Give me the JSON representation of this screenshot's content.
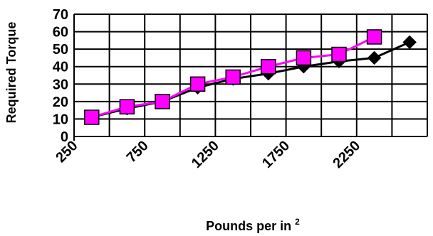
{
  "chart_data": {
    "type": "line",
    "title": "",
    "xlabel": "Pounds per in",
    "xlabel_superscript": "2",
    "ylabel": "Required Torque",
    "xlim": [
      250,
      2750
    ],
    "ylim": [
      0,
      70
    ],
    "x_ticks": [
      250,
      500,
      750,
      1000,
      1250,
      1500,
      1750,
      2000,
      2250,
      2500,
      2750
    ],
    "x_tick_labels": [
      "250",
      "750",
      "1250",
      "1750",
      "2250"
    ],
    "x_tick_label_values": [
      250,
      750,
      1250,
      1750,
      2250
    ],
    "y_ticks": [
      0,
      10,
      20,
      30,
      40,
      50,
      60,
      70
    ],
    "y_tick_labels": [
      "0",
      "10",
      "20",
      "30",
      "40",
      "50",
      "60",
      "70"
    ],
    "grid": true,
    "legend": "none",
    "series": [
      {
        "color": "#000000",
        "marker": "diamond",
        "x": [
          375,
          625,
          875,
          1125,
          1375,
          1625,
          1875,
          2125,
          2375,
          2625
        ],
        "y": [
          11,
          16,
          20,
          28,
          33,
          36,
          40,
          43,
          45,
          54
        ]
      },
      {
        "color": "#ff00ff",
        "marker": "square",
        "x": [
          375,
          625,
          875,
          1125,
          1375,
          1625,
          1875,
          2125,
          2375
        ],
        "y": [
          11,
          17,
          20,
          30,
          34,
          40,
          45,
          47,
          57
        ]
      }
    ]
  }
}
